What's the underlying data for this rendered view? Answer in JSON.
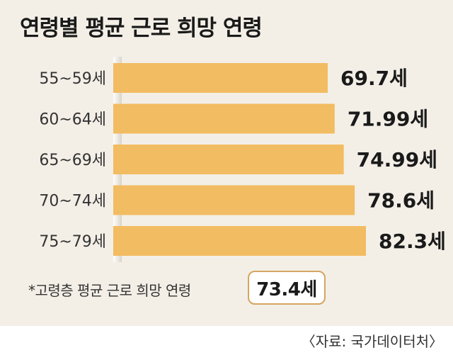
{
  "title": "연령별 평균 근로 희망 연령",
  "chart_data": {
    "type": "bar",
    "orientation": "horizontal",
    "categories": [
      "55~59세",
      "60~64세",
      "65~69세",
      "70~74세",
      "75~79세"
    ],
    "values": [
      69.7,
      71.99,
      74.99,
      78.6,
      82.3
    ],
    "value_labels": [
      "69.7세",
      "71.99세",
      "74.99세",
      "78.6세",
      "82.3세"
    ],
    "bar_color": "#f2bc62",
    "grid": false,
    "legend": "none"
  },
  "note": {
    "label": "*고령층 평균 근로 희망 연령",
    "value": "73.4세"
  },
  "source": "〈자료: 국가데이터처〉",
  "colors": {
    "background": "#f3efe7",
    "bar": "#f2bc62",
    "box_border": "#d5a560"
  }
}
